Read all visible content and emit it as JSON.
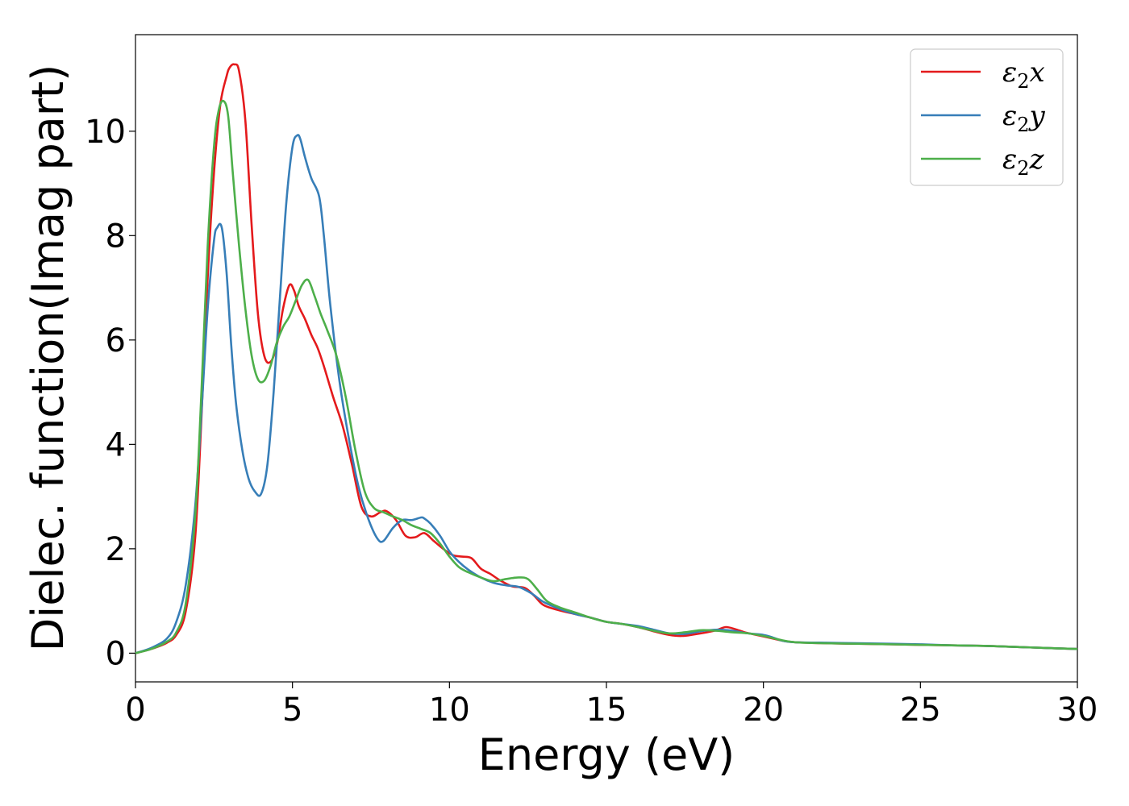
{
  "chart_data": {
    "type": "line",
    "title": "",
    "xlabel": "Energy (eV)",
    "ylabel": "Dielec. function(Imag part)",
    "xlim": [
      0,
      30
    ],
    "ylim": [
      -0.55,
      11.85
    ],
    "xticks": [
      0,
      5,
      10,
      15,
      20,
      25,
      30
    ],
    "yticks": [
      0,
      2,
      4,
      6,
      8,
      10
    ],
    "grid": false,
    "legend_position": "top-right",
    "series": [
      {
        "name": "ε2x",
        "legend_main": "ε",
        "legend_sub": "2",
        "legend_tail": "x",
        "color": "#e41a1c",
        "x": [
          0,
          0.5,
          1.0,
          1.3,
          1.6,
          1.9,
          2.1,
          2.3,
          2.5,
          2.7,
          2.9,
          3.0,
          3.15,
          3.3,
          3.5,
          3.7,
          3.9,
          4.1,
          4.3,
          4.5,
          4.7,
          4.9,
          5.05,
          5.2,
          5.4,
          5.6,
          5.8,
          6.0,
          6.3,
          6.6,
          6.9,
          7.2,
          7.5,
          7.8,
          8.0,
          8.3,
          8.6,
          8.9,
          9.2,
          9.5,
          9.8,
          10.1,
          10.4,
          10.7,
          11.0,
          11.3,
          11.6,
          12.0,
          12.4,
          12.7,
          13.0,
          13.5,
          14.0,
          14.5,
          15.0,
          15.5,
          16.0,
          16.5,
          17.0,
          17.4,
          17.8,
          18.2,
          18.5,
          18.8,
          19.1,
          19.4,
          19.7,
          20.0,
          20.3,
          20.6,
          21.0,
          22.0,
          23.0,
          24.0,
          25.0,
          26.0,
          27.0,
          28.0,
          29.0,
          30.0
        ],
        "values": [
          0.0,
          0.08,
          0.2,
          0.35,
          0.8,
          2.2,
          4.5,
          7.2,
          9.2,
          10.5,
          11.05,
          11.22,
          11.28,
          11.15,
          10.2,
          8.2,
          6.5,
          5.7,
          5.58,
          5.9,
          6.6,
          7.05,
          6.95,
          6.65,
          6.4,
          6.1,
          5.85,
          5.5,
          4.9,
          4.35,
          3.6,
          2.8,
          2.62,
          2.7,
          2.72,
          2.55,
          2.25,
          2.22,
          2.3,
          2.15,
          2.0,
          1.88,
          1.85,
          1.82,
          1.62,
          1.52,
          1.4,
          1.28,
          1.25,
          1.1,
          0.92,
          0.82,
          0.75,
          0.68,
          0.6,
          0.56,
          0.5,
          0.42,
          0.35,
          0.33,
          0.36,
          0.4,
          0.44,
          0.5,
          0.46,
          0.4,
          0.36,
          0.32,
          0.28,
          0.24,
          0.21,
          0.19,
          0.18,
          0.17,
          0.16,
          0.15,
          0.14,
          0.12,
          0.1,
          0.08
        ]
      },
      {
        "name": "ε2y",
        "legend_main": "ε",
        "legend_sub": "2",
        "legend_tail": "y",
        "color": "#377eb8",
        "x": [
          0,
          0.5,
          1.0,
          1.3,
          1.6,
          1.9,
          2.1,
          2.3,
          2.5,
          2.6,
          2.75,
          2.9,
          3.05,
          3.2,
          3.4,
          3.6,
          3.8,
          4.0,
          4.2,
          4.4,
          4.6,
          4.8,
          5.0,
          5.15,
          5.25,
          5.4,
          5.6,
          5.85,
          6.0,
          6.2,
          6.5,
          6.8,
          7.1,
          7.4,
          7.7,
          7.9,
          8.2,
          8.5,
          8.8,
          9.1,
          9.2,
          9.4,
          9.7,
          10.0,
          10.3,
          10.6,
          11.0,
          11.4,
          11.8,
          12.2,
          12.6,
          13.0,
          13.5,
          14.0,
          14.5,
          15.0,
          15.5,
          16.0,
          16.5,
          17.0,
          17.5,
          18.0,
          18.5,
          19.0,
          19.5,
          20.0,
          20.3,
          20.6,
          21.0,
          22.0,
          23.0,
          24.0,
          25.0,
          26.0,
          27.0,
          28.0,
          29.0,
          30.0
        ],
        "values": [
          0.0,
          0.1,
          0.28,
          0.6,
          1.3,
          2.8,
          4.6,
          6.6,
          7.9,
          8.15,
          8.15,
          7.3,
          5.9,
          4.8,
          3.9,
          3.35,
          3.1,
          3.05,
          3.6,
          5.0,
          6.8,
          8.6,
          9.7,
          9.92,
          9.85,
          9.5,
          9.1,
          8.75,
          8.0,
          6.7,
          5.2,
          4.1,
          3.2,
          2.6,
          2.2,
          2.15,
          2.4,
          2.55,
          2.55,
          2.6,
          2.58,
          2.48,
          2.25,
          1.95,
          1.75,
          1.6,
          1.45,
          1.35,
          1.3,
          1.27,
          1.15,
          0.98,
          0.85,
          0.75,
          0.68,
          0.6,
          0.56,
          0.52,
          0.45,
          0.38,
          0.37,
          0.42,
          0.45,
          0.43,
          0.38,
          0.35,
          0.3,
          0.24,
          0.21,
          0.2,
          0.19,
          0.18,
          0.17,
          0.15,
          0.14,
          0.12,
          0.1,
          0.08
        ]
      },
      {
        "name": "ε2z",
        "legend_main": "ε",
        "legend_sub": "2",
        "legend_tail": "z",
        "color": "#4daf4a",
        "x": [
          0,
          0.5,
          1.0,
          1.3,
          1.6,
          1.9,
          2.1,
          2.3,
          2.5,
          2.65,
          2.8,
          2.95,
          3.1,
          3.3,
          3.5,
          3.7,
          3.9,
          4.1,
          4.3,
          4.5,
          4.7,
          4.9,
          5.1,
          5.3,
          5.5,
          5.7,
          5.9,
          6.1,
          6.4,
          6.7,
          7.0,
          7.3,
          7.6,
          7.9,
          8.2,
          8.5,
          8.8,
          9.1,
          9.4,
          9.7,
          10.0,
          10.3,
          10.6,
          11.0,
          11.4,
          11.8,
          12.2,
          12.5,
          12.8,
          13.1,
          13.5,
          14.0,
          14.5,
          15.0,
          15.5,
          16.0,
          16.5,
          17.0,
          17.5,
          18.0,
          18.5,
          19.0,
          19.5,
          20.0,
          20.5,
          21.0,
          22.0,
          23.0,
          24.0,
          25.0,
          26.0,
          27.0,
          28.0,
          29.0,
          30.0
        ],
        "values": [
          0.0,
          0.08,
          0.22,
          0.4,
          0.95,
          2.6,
          5.0,
          7.8,
          9.7,
          10.4,
          10.58,
          10.3,
          9.2,
          7.8,
          6.6,
          5.7,
          5.25,
          5.22,
          5.5,
          5.95,
          6.25,
          6.45,
          6.75,
          7.05,
          7.15,
          6.85,
          6.5,
          6.2,
          5.7,
          4.9,
          3.9,
          3.1,
          2.78,
          2.7,
          2.62,
          2.55,
          2.45,
          2.38,
          2.3,
          2.1,
          1.85,
          1.65,
          1.55,
          1.45,
          1.38,
          1.42,
          1.45,
          1.42,
          1.22,
          1.0,
          0.88,
          0.78,
          0.68,
          0.6,
          0.56,
          0.5,
          0.43,
          0.38,
          0.4,
          0.44,
          0.43,
          0.4,
          0.38,
          0.33,
          0.26,
          0.21,
          0.19,
          0.18,
          0.17,
          0.16,
          0.15,
          0.14,
          0.12,
          0.1,
          0.08
        ]
      }
    ]
  }
}
